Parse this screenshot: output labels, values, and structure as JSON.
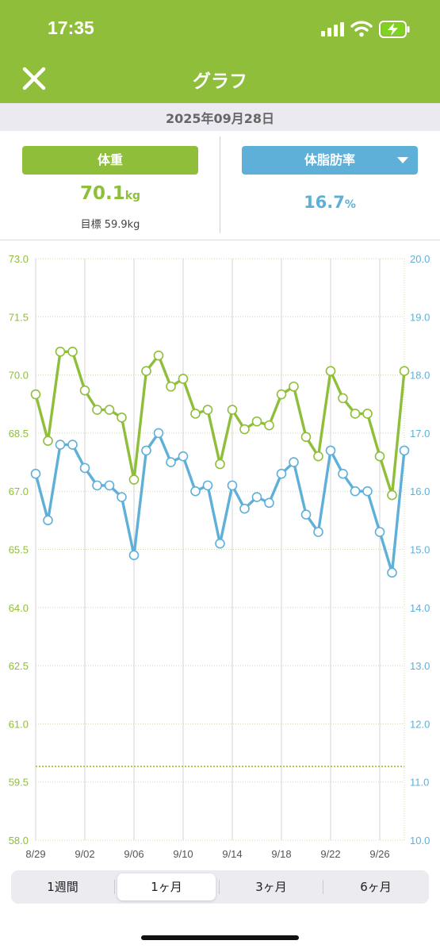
{
  "status_bar": {
    "time": "17:35"
  },
  "nav": {
    "title": "グラフ",
    "close_icon": "close-icon"
  },
  "date": "2025年09月28日",
  "weight": {
    "label": "体重",
    "value": "70.1",
    "unit": "kg",
    "target": "目標 59.9kg"
  },
  "body_fat": {
    "label": "体脂肪率",
    "value": "16.7",
    "unit": "%"
  },
  "colors": {
    "accent_green": "#8fbe3a",
    "accent_blue": "#5eb0d9",
    "nav_bg": "#8fbe3a"
  },
  "chart_data": {
    "type": "line",
    "x": [
      "8/29",
      "8/30",
      "8/31",
      "9/01",
      "9/02",
      "9/03",
      "9/04",
      "9/05",
      "9/06",
      "9/07",
      "9/08",
      "9/09",
      "9/10",
      "9/11",
      "9/12",
      "9/13",
      "9/14",
      "9/15",
      "9/16",
      "9/17",
      "9/18",
      "9/19",
      "9/20",
      "9/21",
      "9/22",
      "9/23",
      "9/24",
      "9/25",
      "9/26",
      "9/27",
      "9/28"
    ],
    "x_tick_labels": [
      "8/29",
      "9/02",
      "9/06",
      "9/10",
      "9/14",
      "9/18",
      "9/22",
      "9/26"
    ],
    "series": [
      {
        "name": "体重",
        "axis": "left",
        "color": "#8fbe3a",
        "values": [
          69.5,
          68.3,
          70.6,
          70.6,
          69.6,
          69.1,
          69.1,
          68.9,
          67.3,
          70.1,
          70.5,
          69.7,
          69.9,
          69.0,
          69.1,
          67.7,
          69.1,
          68.6,
          68.8,
          68.7,
          69.5,
          69.7,
          68.4,
          67.9,
          70.1,
          69.4,
          69.0,
          69.0,
          67.9,
          66.9,
          70.1
        ]
      },
      {
        "name": "体脂肪率",
        "axis": "right",
        "color": "#5eb0d9",
        "values": [
          16.3,
          15.5,
          16.8,
          16.8,
          16.4,
          16.1,
          16.1,
          15.9,
          14.9,
          16.7,
          17.0,
          16.5,
          16.6,
          16.0,
          16.1,
          15.1,
          16.1,
          15.7,
          15.9,
          15.8,
          16.3,
          16.5,
          15.6,
          15.3,
          16.7,
          16.3,
          16.0,
          16.0,
          15.3,
          14.6,
          16.7
        ]
      }
    ],
    "left_axis": {
      "range": [
        58.0,
        73.0
      ],
      "ticks": [
        "73.0",
        "71.5",
        "70.0",
        "68.5",
        "67.0",
        "65.5",
        "64.0",
        "62.5",
        "61.0",
        "59.5",
        "58.0"
      ]
    },
    "right_axis": {
      "range": [
        10.0,
        20.0
      ],
      "ticks": [
        "20.0",
        "19.0",
        "18.0",
        "17.0",
        "16.0",
        "15.0",
        "14.0",
        "13.0",
        "12.0",
        "11.0",
        "10.0"
      ]
    },
    "target_line": 59.9,
    "grid": true
  },
  "period_tabs": [
    {
      "label": "1週間",
      "active": false
    },
    {
      "label": "1ヶ月",
      "active": true
    },
    {
      "label": "3ヶ月",
      "active": false
    },
    {
      "label": "6ヶ月",
      "active": false
    }
  ]
}
